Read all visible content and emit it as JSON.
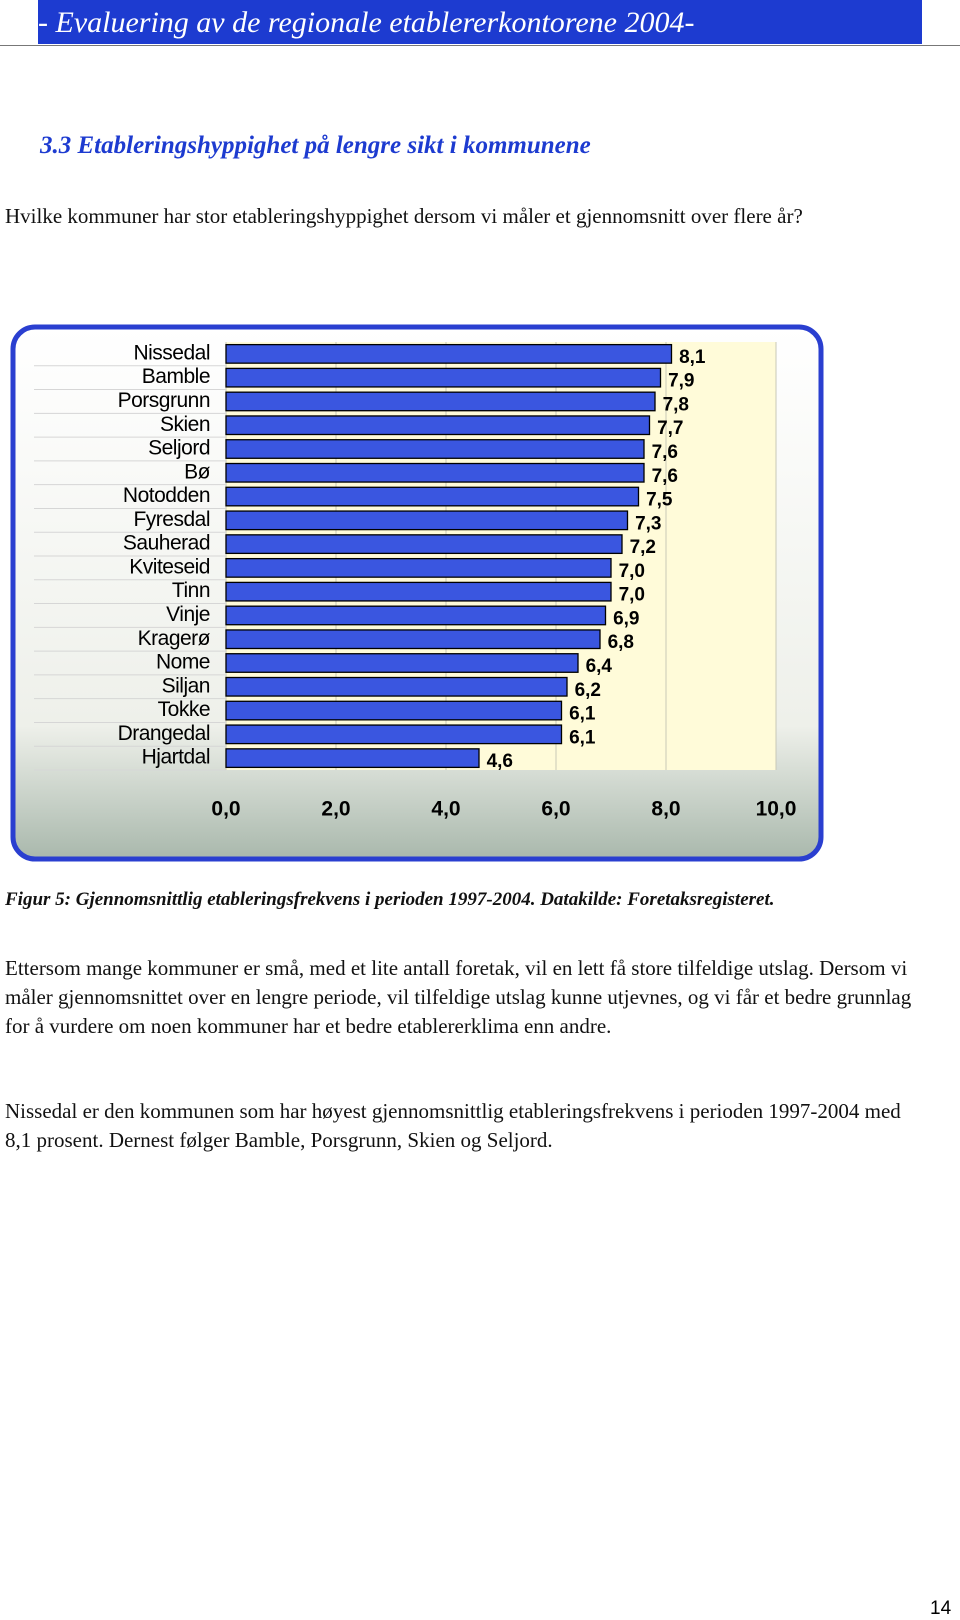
{
  "header": {
    "title": "- Evaluering av de regionale etablererkontorene 2004-"
  },
  "section": {
    "heading": "3.3  Etableringshyppighet på lengre sikt i kommunene"
  },
  "intro": "Hvilke kommuner har stor etableringshyppighet dersom vi måler et gjennomsnitt over flere år?",
  "chart_data": {
    "type": "barh",
    "categories": [
      "Nissedal",
      "Bamble",
      "Porsgrunn",
      "Skien",
      "Seljord",
      "Bø",
      "Notodden",
      "Fyresdal",
      "Sauherad",
      "Kviteseid",
      "Tinn",
      "Vinje",
      "Kragerø",
      "Nome",
      "Siljan",
      "Tokke",
      "Drangedal",
      "Hjartdal"
    ],
    "values": [
      8.1,
      7.9,
      7.8,
      7.7,
      7.6,
      7.6,
      7.5,
      7.3,
      7.2,
      7.0,
      7.0,
      6.9,
      6.8,
      6.4,
      6.2,
      6.1,
      6.1,
      4.6
    ],
    "value_labels": [
      "8,1",
      "7,9",
      "7,8",
      "7,7",
      "7,6",
      "7,6",
      "7,5",
      "7,3",
      "7,2",
      "7,0",
      "7,0",
      "6,9",
      "6,8",
      "6,4",
      "6,2",
      "6,1",
      "6,1",
      "4,6"
    ],
    "color": "#3a56e0",
    "xlim": [
      0,
      10
    ],
    "xticks": [
      {
        "value": 0,
        "label": "0,0"
      },
      {
        "value": 2,
        "label": "2,0"
      },
      {
        "value": 4,
        "label": "4,0"
      },
      {
        "value": 6,
        "label": "6,0"
      },
      {
        "value": 8,
        "label": "8,0"
      },
      {
        "value": 10,
        "label": "10,0"
      }
    ],
    "grid": true
  },
  "caption": "Figur 5: Gjennomsnittlig etableringsfrekvens i perioden 1997-2004. Datakilde: Foretaksregisteret.",
  "body": [
    "Ettersom mange kommuner er små, med et lite antall foretak, vil en lett få store tilfeldige utslag.  Dersom vi måler gjennomsnittet over en lengre periode, vil tilfeldige utslag kunne utjevnes, og vi får et bedre grunnlag for å vurdere om noen kommuner har et bedre etablererklima enn andre.",
    "Nissedal er den kommunen som har høyest gjennomsnittlig etableringsfrekvens i perioden 1997-2004 med 8,1 prosent.  Dernest følger Bamble, Porsgrunn, Skien og Seljord."
  ],
  "page_number": "14"
}
